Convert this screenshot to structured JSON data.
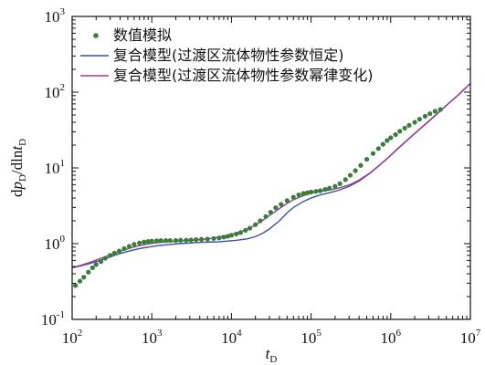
{
  "chart_data": {
    "type": "scatter",
    "x_scale": "log",
    "y_scale": "log",
    "xlim": [
      100,
      10000000
    ],
    "ylim": [
      0.1,
      1000
    ],
    "grid": false,
    "legend_position": "top-left",
    "xlabel": {
      "main": "t",
      "sub": "D"
    },
    "ylabel": {
      "parts": [
        {
          "t": "d",
          "italic": false,
          "sub": false
        },
        {
          "t": "p",
          "italic": true,
          "sub": false
        },
        {
          "t": "D",
          "italic": false,
          "sub": true
        },
        {
          "t": "/dln",
          "italic": false,
          "sub": false
        },
        {
          "t": "t",
          "italic": true,
          "sub": false
        },
        {
          "t": "D",
          "italic": false,
          "sub": true
        }
      ]
    },
    "x_ticks": [
      {
        "value": 100,
        "base": "10",
        "exp": "2"
      },
      {
        "value": 1000,
        "base": "10",
        "exp": "3"
      },
      {
        "value": 10000,
        "base": "10",
        "exp": "4"
      },
      {
        "value": 100000,
        "base": "10",
        "exp": "5"
      },
      {
        "value": 1000000,
        "base": "10",
        "exp": "6"
      },
      {
        "value": 10000000,
        "base": "10",
        "exp": "7"
      }
    ],
    "y_ticks": [
      {
        "value": 0.1,
        "base": "10",
        "exp": "-1"
      },
      {
        "value": 1,
        "base": "10",
        "exp": "0"
      },
      {
        "value": 10,
        "base": "10",
        "exp": "1"
      },
      {
        "value": 100,
        "base": "10",
        "exp": "2"
      },
      {
        "value": 1000,
        "base": "10",
        "exp": "3"
      }
    ],
    "series": [
      {
        "name": "数值模拟",
        "kind": "points",
        "color": "#3a7d3a",
        "x": [
          110,
          125,
          140,
          160,
          180,
          200,
          230,
          260,
          300,
          340,
          390,
          450,
          520,
          600,
          700,
          800,
          900,
          1000,
          1150,
          1300,
          1500,
          1700,
          2000,
          2300,
          2700,
          3100,
          3600,
          4200,
          5000,
          6000,
          7000,
          8000,
          9000,
          10000,
          11500,
          13000,
          15000,
          17000,
          20000,
          23000,
          27000,
          31000,
          36000,
          42000,
          50000,
          60000,
          70000,
          80000,
          90000,
          100000,
          115000,
          130000,
          150000,
          170000,
          200000,
          230000,
          270000,
          310000,
          360000,
          420000,
          500000,
          600000,
          700000,
          800000,
          900000,
          1000000,
          1150000,
          1300000,
          1500000,
          1700000,
          2000000,
          2300000,
          2700000,
          3100000,
          3600000,
          4200000
        ],
        "y": [
          0.28,
          0.32,
          0.36,
          0.42,
          0.48,
          0.53,
          0.58,
          0.64,
          0.7,
          0.75,
          0.8,
          0.86,
          0.92,
          0.98,
          1.02,
          1.05,
          1.07,
          1.08,
          1.09,
          1.1,
          1.1,
          1.1,
          1.1,
          1.11,
          1.11,
          1.12,
          1.13,
          1.14,
          1.15,
          1.17,
          1.19,
          1.22,
          1.25,
          1.29,
          1.34,
          1.4,
          1.5,
          1.6,
          1.78,
          2.0,
          2.28,
          2.6,
          2.98,
          3.3,
          3.7,
          4.1,
          4.4,
          4.6,
          4.7,
          4.8,
          4.9,
          5.0,
          5.2,
          5.4,
          5.7,
          6.2,
          7.0,
          8.0,
          9.2,
          10.8,
          13.0,
          15.5,
          18.0,
          20.5,
          23.0,
          25.0,
          27.5,
          30.5,
          33.5,
          36.5,
          40.0,
          44.0,
          48.0,
          52.0,
          56.0,
          59.0
        ]
      },
      {
        "name": "复合模型(过渡区流体物性参数恒定)",
        "kind": "line",
        "color": "#3b4fa8",
        "x": [
          100,
          130,
          170,
          220,
          300,
          400,
          550,
          700,
          900,
          1200,
          1600,
          2200,
          3000,
          4000,
          5500,
          7000,
          9000,
          12000,
          16000,
          20000,
          25000,
          30000,
          40000,
          50000,
          60000,
          80000,
          100000,
          130000,
          170000,
          220000,
          300000,
          400000,
          550000,
          700000,
          900000,
          1200000,
          1600000,
          2200000,
          3000000,
          4000000,
          5500000,
          7000000,
          10000000
        ],
        "y": [
          0.48,
          0.51,
          0.55,
          0.6,
          0.67,
          0.74,
          0.81,
          0.86,
          0.9,
          0.94,
          0.97,
          1.0,
          1.02,
          1.04,
          1.05,
          1.06,
          1.08,
          1.11,
          1.16,
          1.24,
          1.38,
          1.56,
          2.0,
          2.55,
          3.0,
          3.6,
          4.0,
          4.4,
          4.7,
          5.05,
          5.7,
          6.7,
          8.5,
          10.5,
          13.2,
          17.5,
          23.0,
          31.0,
          41.0,
          54.0,
          73.0,
          91.0,
          130.0
        ]
      },
      {
        "name": "复合模型(过渡区流体物性参数幂律变化)",
        "kind": "line",
        "color": "#9a3f99",
        "x": [
          100,
          130,
          170,
          220,
          300,
          400,
          550,
          700,
          900,
          1200,
          1600,
          2200,
          3000,
          4000,
          5500,
          7000,
          9000,
          12000,
          16000,
          20000,
          25000,
          30000,
          40000,
          50000,
          60000,
          80000,
          100000,
          130000,
          170000,
          220000,
          300000,
          400000,
          550000,
          700000,
          900000,
          1200000,
          1600000,
          2200000,
          3000000,
          4000000,
          5500000,
          7000000,
          10000000
        ],
        "y": [
          0.48,
          0.52,
          0.57,
          0.63,
          0.71,
          0.79,
          0.88,
          0.94,
          0.99,
          1.03,
          1.06,
          1.08,
          1.1,
          1.13,
          1.17,
          1.22,
          1.29,
          1.39,
          1.56,
          1.76,
          2.05,
          2.35,
          2.9,
          3.4,
          3.8,
          4.3,
          4.65,
          4.9,
          5.1,
          5.4,
          5.95,
          6.9,
          8.6,
          10.6,
          13.3,
          17.7,
          23.2,
          31.3,
          41.5,
          54.5,
          73.5,
          91.5,
          131.0
        ]
      }
    ]
  }
}
